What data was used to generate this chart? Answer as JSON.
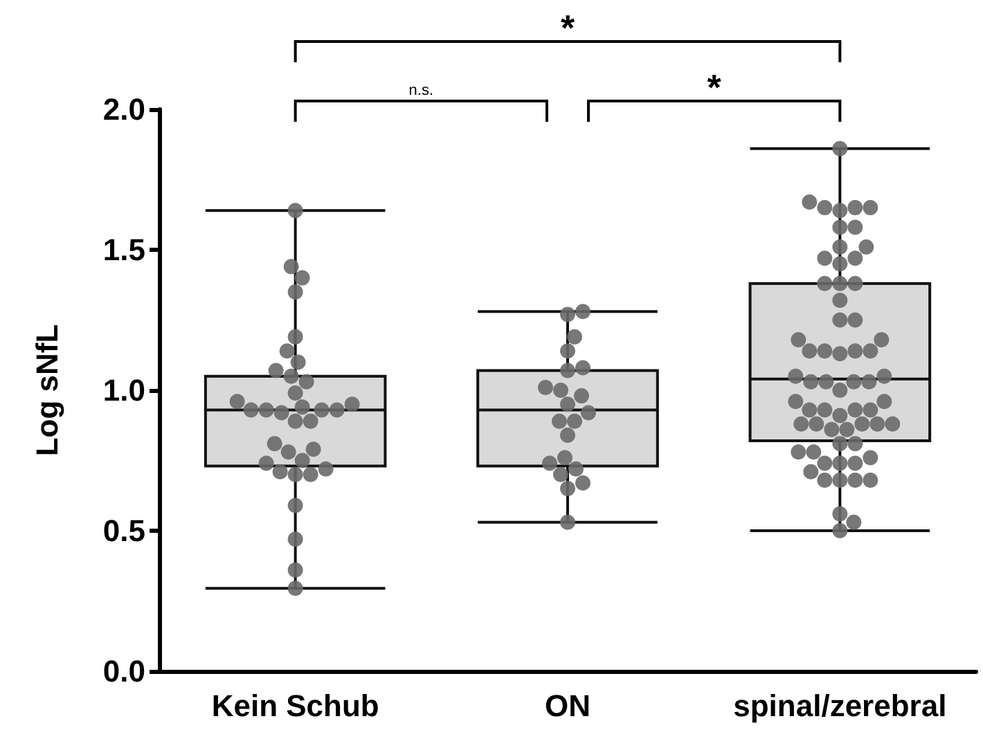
{
  "chart_data": {
    "type": "box",
    "ylabel": "Log sNfL",
    "categories": [
      "Kein Schub",
      "ON",
      "spinal/zerebral"
    ],
    "color": "#d9d9d9",
    "boxes": [
      {
        "low": 0.295,
        "q1": 0.73,
        "median": 0.93,
        "q3": 1.05,
        "high": 1.64
      },
      {
        "low": 0.53,
        "q1": 0.73,
        "median": 0.93,
        "q3": 1.07,
        "high": 1.28
      },
      {
        "low": 0.5,
        "q1": 0.82,
        "median": 1.04,
        "q3": 1.38,
        "high": 1.86
      }
    ],
    "series": [
      {
        "type": "scatter",
        "color": "#696969",
        "x": [
          "Kein Schub",
          "Kein Schub",
          "Kein Schub",
          "Kein Schub",
          "Kein Schub",
          "Kein Schub",
          "Kein Schub",
          "Kein Schub",
          "Kein Schub",
          "Kein Schub",
          "Kein Schub",
          "Kein Schub",
          "Kein Schub",
          "Kein Schub",
          "Kein Schub",
          "Kein Schub",
          "Kein Schub",
          "Kein Schub",
          "Kein Schub",
          "Kein Schub",
          "Kein Schub",
          "Kein Schub",
          "Kein Schub",
          "Kein Schub",
          "Kein Schub",
          "Kein Schub",
          "Kein Schub",
          "Kein Schub",
          "Kein Schub",
          "Kein Schub",
          "Kein Schub",
          "Kein Schub",
          "Kein Schub",
          "Kein Schub"
        ],
        "values": [
          1.64,
          1.44,
          1.4,
          1.35,
          1.19,
          1.14,
          1.1,
          1.07,
          1.05,
          1.03,
          0.99,
          0.96,
          0.94,
          0.93,
          0.93,
          0.93,
          0.93,
          0.92,
          0.89,
          0.89,
          0.81,
          0.79,
          0.78,
          0.75,
          0.74,
          0.72,
          0.71,
          0.7,
          0.7,
          0.59,
          0.47,
          0.36,
          0.295,
          0.95
        ]
      },
      {
        "type": "scatter",
        "color": "#696969",
        "x": [
          "ON",
          "ON",
          "ON",
          "ON",
          "ON",
          "ON",
          "ON",
          "ON",
          "ON",
          "ON",
          "ON",
          "ON",
          "ON",
          "ON",
          "ON",
          "ON",
          "ON",
          "ON",
          "ON",
          "ON",
          "ON"
        ],
        "values": [
          1.28,
          1.27,
          1.19,
          1.14,
          1.08,
          1.07,
          1.01,
          1.0,
          0.98,
          0.95,
          0.92,
          0.89,
          0.89,
          0.84,
          0.76,
          0.74,
          0.72,
          0.7,
          0.67,
          0.65,
          0.53
        ]
      },
      {
        "type": "scatter",
        "color": "#696969",
        "x": [
          "spinal/zerebral",
          "spinal/zerebral",
          "spinal/zerebral",
          "spinal/zerebral",
          "spinal/zerebral",
          "spinal/zerebral",
          "spinal/zerebral",
          "spinal/zerebral",
          "spinal/zerebral",
          "spinal/zerebral",
          "spinal/zerebral",
          "spinal/zerebral",
          "spinal/zerebral",
          "spinal/zerebral",
          "spinal/zerebral",
          "spinal/zerebral",
          "spinal/zerebral",
          "spinal/zerebral",
          "spinal/zerebral",
          "spinal/zerebral",
          "spinal/zerebral",
          "spinal/zerebral",
          "spinal/zerebral",
          "spinal/zerebral",
          "spinal/zerebral",
          "spinal/zerebral",
          "spinal/zerebral",
          "spinal/zerebral",
          "spinal/zerebral",
          "spinal/zerebral",
          "spinal/zerebral",
          "spinal/zerebral",
          "spinal/zerebral",
          "spinal/zerebral",
          "spinal/zerebral",
          "spinal/zerebral",
          "spinal/zerebral",
          "spinal/zerebral",
          "spinal/zerebral",
          "spinal/zerebral",
          "spinal/zerebral",
          "spinal/zerebral",
          "spinal/zerebral",
          "spinal/zerebral",
          "spinal/zerebral",
          "spinal/zerebral",
          "spinal/zerebral",
          "spinal/zerebral",
          "spinal/zerebral",
          "spinal/zerebral",
          "spinal/zerebral",
          "spinal/zerebral",
          "spinal/zerebral",
          "spinal/zerebral",
          "spinal/zerebral",
          "spinal/zerebral",
          "spinal/zerebral",
          "spinal/zerebral",
          "spinal/zerebral",
          "spinal/zerebral",
          "spinal/zerebral",
          "spinal/zerebral",
          "spinal/zerebral"
        ],
        "values": [
          1.86,
          1.67,
          1.65,
          1.65,
          1.64,
          1.65,
          1.58,
          1.58,
          1.51,
          1.51,
          1.47,
          1.47,
          1.45,
          1.38,
          1.38,
          1.38,
          1.32,
          1.25,
          1.25,
          1.18,
          1.18,
          1.14,
          1.14,
          1.14,
          1.14,
          1.13,
          1.05,
          1.05,
          1.03,
          1.03,
          1.03,
          1.03,
          0.96,
          0.96,
          0.93,
          0.93,
          0.93,
          0.93,
          0.88,
          0.88,
          0.88,
          0.88,
          0.88,
          0.86,
          0.86,
          0.81,
          0.81,
          0.78,
          0.78,
          0.76,
          0.74,
          0.74,
          0.74,
          0.71,
          0.68,
          0.68,
          0.68,
          0.68,
          0.56,
          0.53,
          0.5,
          1.0,
          0.91
        ]
      }
    ],
    "ylim": [
      0,
      2
    ],
    "yticks": [
      {
        "value": 0,
        "label": "0.0"
      },
      {
        "value": 0.5,
        "label": "0.5"
      },
      {
        "value": 1,
        "label": "1.0"
      },
      {
        "value": 1.5,
        "label": "1.5"
      },
      {
        "value": 2,
        "label": "2.0"
      }
    ],
    "marker": "circle",
    "grid": false,
    "annotations": [
      "n.s.",
      "*",
      "*"
    ]
  }
}
